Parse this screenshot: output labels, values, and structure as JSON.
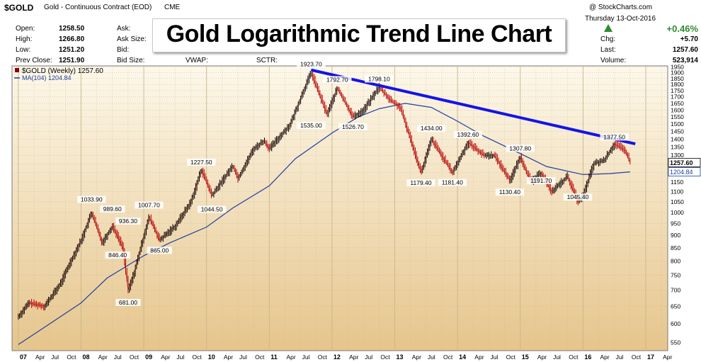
{
  "header": {
    "ticker": "$GOLD",
    "description": "Gold - Continuous Contract (EOD)",
    "exchange": "CME",
    "date": "Thursday   13-Oct-2016",
    "site": "@ StockCharts.com",
    "overlay_title": "Gold Logarithmic Trend Line Chart",
    "stats_left": [
      {
        "label": "Open:",
        "value": "1258.50"
      },
      {
        "label": "High:",
        "value": "1266.80"
      },
      {
        "label": "Low:",
        "value": "1251.20"
      },
      {
        "label": "Prev Close:",
        "value": "1251.90"
      }
    ],
    "stats_mid_labels": [
      "Ask:",
      "Ask Size:",
      "Bid:",
      "Bid Size:"
    ],
    "stats_extra": [
      {
        "label": "VWAP:"
      },
      {
        "label": "SCTR:"
      }
    ],
    "stats_right": {
      "change_pct": "+0.46%",
      "chg_label": "Chg:",
      "chg_value": "+5.70",
      "last_label": "Last:",
      "last_value": "1257.60",
      "volume_label": "Volume:",
      "volume_value": "523,914"
    },
    "colors": {
      "up": "#2e8b2e",
      "accent_line": "#1414e6",
      "ma_line": "#1f3fa0",
      "bg_top": "#fdf8ea",
      "bg_bottom": "#e6c58c"
    }
  },
  "chart_data": {
    "type": "line",
    "scale": "log",
    "title": "Gold Logarithmic Trend Line Chart",
    "legend": [
      {
        "name": "$GOLD (Weekly) 1257.60",
        "color": "#8b0000"
      },
      {
        "name": "MA(104) 1204.84",
        "color": "#1f3fa0"
      }
    ],
    "ylim": [
      530,
      1960
    ],
    "y_ticks": [
      550,
      600,
      650,
      700,
      750,
      800,
      850,
      900,
      950,
      1000,
      1050,
      1100,
      1150,
      1200,
      1250,
      1300,
      1350,
      1400,
      1450,
      1500,
      1550,
      1600,
      1650,
      1700,
      1750,
      1800,
      1850,
      1900,
      1950
    ],
    "x_ticks": [
      "07",
      "Apr",
      "Jul",
      "Oct",
      "08",
      "Apr",
      "Jul",
      "Oct",
      "09",
      "Apr",
      "Jul",
      "Oct",
      "10",
      "Apr",
      "Jul",
      "Oct",
      "11",
      "Apr",
      "Jul",
      "Oct",
      "12",
      "Apr",
      "Jul",
      "Oct",
      "13",
      "Apr",
      "Jul",
      "Oct",
      "14",
      "Apr",
      "Jul",
      "Oct",
      "15",
      "Apr",
      "Jul",
      "Oct",
      "16",
      "Apr",
      "Jul",
      "Oct",
      "17",
      "Apr"
    ],
    "price_series": {
      "name": "$GOLD (Weekly)",
      "x": [
        "2007-01",
        "2007-03",
        "2007-06",
        "2007-09",
        "2007-11",
        "2008-01",
        "2008-03",
        "2008-05",
        "2008-07",
        "2008-09",
        "2008-10",
        "2008-11",
        "2009-01",
        "2009-02",
        "2009-04",
        "2009-07",
        "2009-10",
        "2009-12",
        "2010-02",
        "2010-06",
        "2010-07",
        "2010-10",
        "2010-12",
        "2011-01",
        "2011-05",
        "2011-08",
        "2011-09",
        "2011-12",
        "2012-02",
        "2012-05",
        "2012-07",
        "2012-10",
        "2012-12",
        "2013-02",
        "2013-04",
        "2013-06",
        "2013-08",
        "2013-12",
        "2014-03",
        "2014-06",
        "2014-08",
        "2014-11",
        "2015-01",
        "2015-03",
        "2015-05",
        "2015-07",
        "2015-10",
        "2015-12",
        "2016-01",
        "2016-03",
        "2016-05",
        "2016-07",
        "2016-09",
        "2016-10"
      ],
      "y": [
        620,
        660,
        650,
        720,
        800,
        880,
        1000,
        870,
        940,
        850,
        700,
        750,
        900,
        980,
        880,
        940,
        1050,
        1220,
        1080,
        1240,
        1170,
        1340,
        1390,
        1340,
        1500,
        1800,
        1900,
        1570,
        1770,
        1550,
        1600,
        1780,
        1680,
        1620,
        1400,
        1200,
        1400,
        1200,
        1380,
        1300,
        1300,
        1160,
        1290,
        1150,
        1200,
        1100,
        1180,
        1050,
        1080,
        1250,
        1270,
        1370,
        1330,
        1257.6
      ]
    },
    "ma_series": {
      "name": "MA(104)",
      "x": [
        "2007-01",
        "2007-06",
        "2008-01",
        "2008-06",
        "2009-01",
        "2009-06",
        "2010-01",
        "2010-06",
        "2011-01",
        "2011-06",
        "2012-01",
        "2012-06",
        "2012-10",
        "2013-03",
        "2013-08",
        "2014-01",
        "2014-06",
        "2015-01",
        "2015-06",
        "2016-01",
        "2016-06",
        "2016-10"
      ],
      "y": [
        545,
        590,
        660,
        740,
        820,
        870,
        935,
        1020,
        1130,
        1280,
        1440,
        1550,
        1610,
        1650,
        1620,
        1520,
        1420,
        1310,
        1235,
        1190,
        1195,
        1204.84
      ]
    },
    "annotations": [
      {
        "date": "2008-03",
        "value": 1033.9,
        "label": "1033.90"
      },
      {
        "date": "2008-07",
        "value": 989.6,
        "label": "989.60"
      },
      {
        "date": "2008-08",
        "value": 846.4,
        "label": "846.40"
      },
      {
        "date": "2008-10",
        "value": 936.3,
        "label": "936.30"
      },
      {
        "date": "2008-10",
        "value": 681.0,
        "label": "681.00"
      },
      {
        "date": "2009-02",
        "value": 1007.7,
        "label": "1007.70"
      },
      {
        "date": "2009-04",
        "value": 865.0,
        "label": "865.00"
      },
      {
        "date": "2009-12",
        "value": 1227.5,
        "label": "1227.50"
      },
      {
        "date": "2010-02",
        "value": 1044.5,
        "label": "1044.50"
      },
      {
        "date": "2011-09",
        "value": 1923.7,
        "label": "1923.70"
      },
      {
        "date": "2011-09",
        "value": 1535.0,
        "label": "1535.00"
      },
      {
        "date": "2012-02",
        "value": 1792.7,
        "label": "1792.70"
      },
      {
        "date": "2012-05",
        "value": 1526.7,
        "label": "1526.70"
      },
      {
        "date": "2012-10",
        "value": 1798.1,
        "label": "1798.10"
      },
      {
        "date": "2013-06",
        "value": 1179.4,
        "label": "1179.40"
      },
      {
        "date": "2013-08",
        "value": 1434.0,
        "label": "1434.00"
      },
      {
        "date": "2013-12",
        "value": 1181.4,
        "label": "1181.40"
      },
      {
        "date": "2014-03",
        "value": 1392.6,
        "label": "1392.60"
      },
      {
        "date": "2014-11",
        "value": 1130.4,
        "label": "1130.40"
      },
      {
        "date": "2015-01",
        "value": 1307.8,
        "label": "1307.80"
      },
      {
        "date": "2015-05",
        "value": 1191.7,
        "label": "1191.70"
      },
      {
        "date": "2015-12",
        "value": 1045.4,
        "label": "1045.40"
      },
      {
        "date": "2016-07",
        "value": 1377.5,
        "label": "1377.50"
      }
    ],
    "trend_line": {
      "from": {
        "date": "2011-09",
        "value": 1923.7
      },
      "to": {
        "date": "2016-11",
        "value": 1370
      }
    },
    "last_label": "1257.60",
    "ma_label": "1204.84",
    "grid": true,
    "legend_position": "top-left"
  }
}
